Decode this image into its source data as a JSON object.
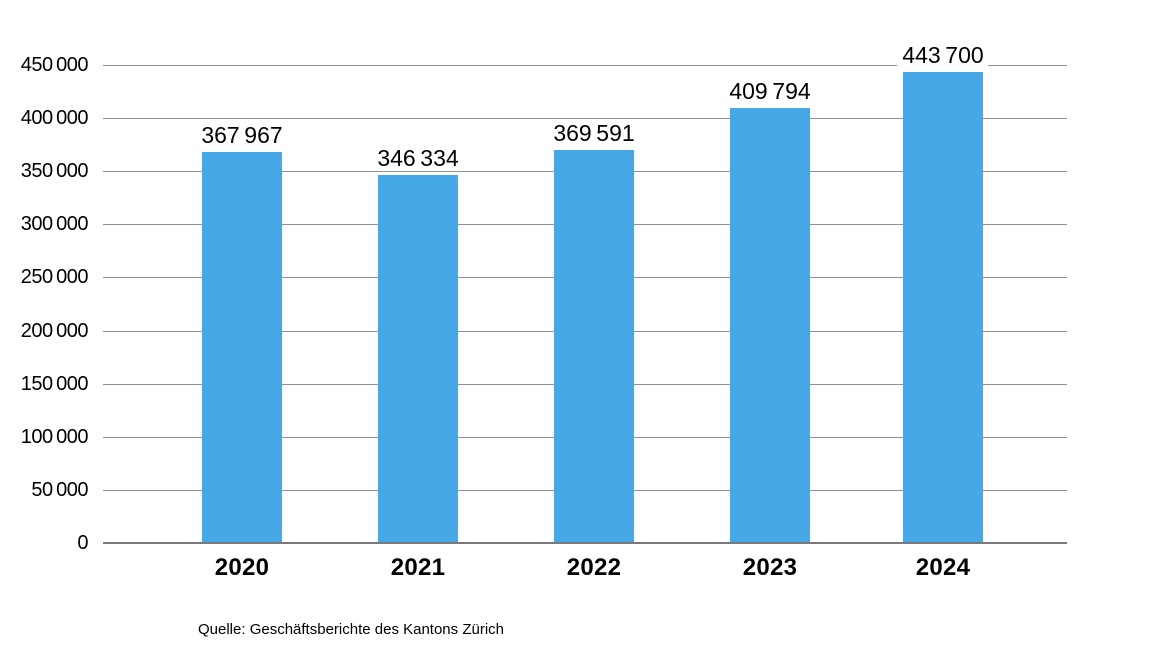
{
  "chart_data": {
    "type": "bar",
    "categories": [
      "2020",
      "2021",
      "2022",
      "2023",
      "2024"
    ],
    "values": [
      367967,
      346334,
      369591,
      409794,
      443700
    ],
    "value_labels": [
      "367 967",
      "346 334",
      "369 591",
      "409 794",
      "443 700"
    ],
    "y_ticks": [
      0,
      50000,
      100000,
      150000,
      200000,
      250000,
      300000,
      350000,
      400000,
      450000
    ],
    "y_tick_labels": [
      "0",
      "50 000",
      "100 000",
      "150 000",
      "200 000",
      "250 000",
      "300 000",
      "350 000",
      "400 000",
      "450 000"
    ],
    "ylim": [
      0,
      450000
    ],
    "grid": true,
    "legend": "none",
    "title": "",
    "xlabel": "",
    "ylabel": "",
    "bar_color": "#47A8E8",
    "gridline_color": "#909090",
    "axis_line_color": "#7A7A7A",
    "source": "Quelle: Geschäftsberichte des Kantons Zürich"
  }
}
